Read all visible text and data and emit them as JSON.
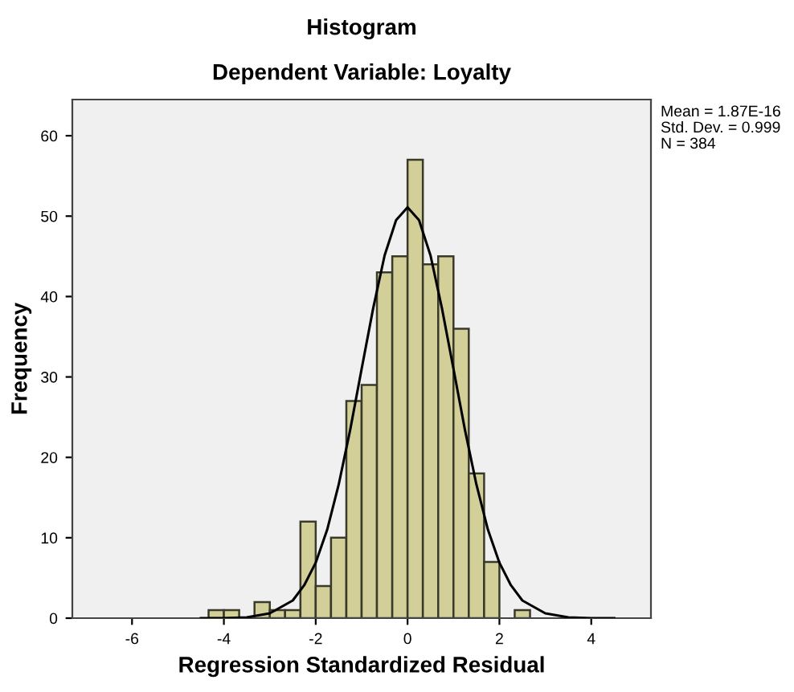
{
  "chart_data": {
    "type": "histogram",
    "title": "Histogram",
    "subtitle": "Dependent Variable: Loyalty",
    "xlabel": "Regression Standardized Residual",
    "ylabel": "Frequency",
    "bins": [
      -4.333,
      -4,
      -3.667,
      -3.333,
      -3,
      -2.667,
      -2.333,
      -2,
      -1.667,
      -1.333,
      -1,
      -0.667,
      -0.333,
      0,
      0.333,
      0.667,
      1,
      1.333,
      1.667,
      2,
      2.333,
      2.667
    ],
    "values": [
      1,
      1,
      0,
      2,
      1,
      1,
      12,
      4,
      10,
      27,
      29,
      43,
      45,
      57,
      44,
      45,
      36,
      18,
      7,
      0,
      1
    ],
    "color": "#d3cf98",
    "series": [
      {
        "type": "line",
        "color": "#000000",
        "x": [
          -4.5,
          -4,
          -3.5,
          -3,
          -2.5,
          -2.25,
          -2,
          -1.75,
          -1.5,
          -1.25,
          -1,
          -0.75,
          -0.5,
          -0.25,
          0,
          0.25,
          0.5,
          0.75,
          1,
          1.25,
          1.5,
          1.75,
          2,
          2.25,
          2.5,
          3,
          3.5,
          4,
          4.5
        ],
        "values": [
          0,
          0,
          0.1,
          0.6,
          2.2,
          4.1,
          6.9,
          11,
          16.6,
          23.4,
          31,
          38.5,
          45.1,
          49.5,
          51.1,
          49.5,
          45.1,
          38.5,
          31,
          23.4,
          16.6,
          11,
          6.9,
          4.1,
          2.2,
          0.6,
          0.1,
          0,
          0
        ]
      }
    ],
    "xlim": [
      -7.3,
      5.3
    ],
    "ylim": [
      0,
      64.5
    ],
    "xticks": [
      -6,
      -4,
      -2,
      0,
      2,
      4
    ],
    "yticks": [
      0,
      10,
      20,
      30,
      40,
      50,
      60
    ],
    "grid": false,
    "legend": false,
    "annotations": [
      "Mean = 1.87E-16",
      "Std. Dev. = 0.999",
      "N = 384"
    ]
  }
}
